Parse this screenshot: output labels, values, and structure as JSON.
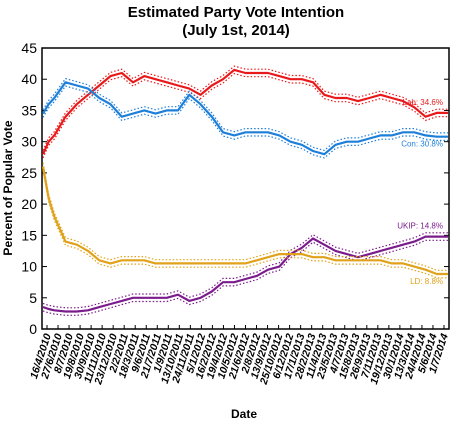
{
  "chart_data": {
    "type": "line",
    "title": "Estimated Party Vote Intention",
    "subtitle": "(July 1st, 2014)",
    "xlabel": "Date",
    "ylabel": "Percent of Popular Vote",
    "ylim": [
      0,
      45
    ],
    "yticks": [
      0,
      5,
      10,
      15,
      20,
      25,
      30,
      35,
      40,
      45
    ],
    "grid": false,
    "xticks": [
      "16/4/2010",
      "27/6/2010",
      "8/7/2010",
      "19/8/2010",
      "30/9/2010",
      "11/11/2010",
      "23/12/2010",
      "2/2/2011",
      "18/3/2011",
      "9/6/2011",
      "21/7/2011",
      "1/9/2011",
      "13/10/2011",
      "24/11/2011",
      "5/1/2012",
      "16/2/2012",
      "19/4/2012",
      "10/5/2012",
      "21/6/2012",
      "2/8/2012",
      "13/9/2012",
      "25/10/2012",
      "6/12/2012",
      "17/1/2013",
      "28/2/2013",
      "11/4/2013",
      "23/5/2013",
      "4/7/2013",
      "15/8/2013",
      "26/9/2013",
      "7/11/2013",
      "19/12/2013",
      "30/1/2014",
      "13/3/2014",
      "24/4/2014",
      "5/6/2014",
      "1/7/2014"
    ],
    "x": [
      0,
      0.5,
      1,
      2,
      3,
      4,
      5,
      6,
      7,
      8,
      9,
      10,
      11,
      12,
      13,
      14,
      15,
      16,
      17,
      18,
      19,
      20,
      21,
      22,
      23,
      24,
      25,
      26,
      27,
      28,
      29,
      30,
      31,
      32,
      33,
      34,
      35,
      36
    ],
    "series": [
      {
        "name": "Lab",
        "end_label": "Lab: 34.6%",
        "color": "#e8191b",
        "values": [
          28,
          30,
          31,
          34,
          36,
          37.5,
          39,
          40.5,
          41,
          39.5,
          40.5,
          40,
          39.5,
          39,
          38.5,
          37.5,
          39,
          40,
          41.5,
          41,
          41,
          41,
          40.5,
          40,
          40,
          39.5,
          37.5,
          37,
          37,
          36.5,
          37,
          37.5,
          37,
          36.5,
          35.5,
          34,
          34.6,
          34.6
        ]
      },
      {
        "name": "Con",
        "end_label": "Con: 30.8%",
        "color": "#1e7fd9",
        "values": [
          34.5,
          36,
          37,
          39.5,
          39,
          38.5,
          37,
          36,
          34,
          34.5,
          35,
          34.5,
          35,
          35,
          37.5,
          36,
          34,
          31.5,
          31,
          31.5,
          31.5,
          31.5,
          31,
          30,
          29.5,
          28.5,
          28,
          29.5,
          30,
          30,
          30.5,
          31,
          31,
          31.5,
          31.5,
          31,
          30.8,
          30.8
        ]
      },
      {
        "name": "UKIP",
        "end_label": "UKIP: 14.8%",
        "color": "#7b1c8c",
        "values": [
          3.5,
          3.2,
          3,
          2.8,
          2.8,
          3,
          3.5,
          4,
          4.5,
          5,
          5,
          5,
          5,
          5.5,
          4.5,
          5,
          6,
          7.5,
          7.5,
          8,
          8.5,
          9.5,
          10,
          12,
          13,
          14.5,
          13.5,
          12.5,
          12,
          11.5,
          12,
          12.5,
          13,
          13.5,
          14,
          14.8,
          14.8,
          14.8
        ]
      },
      {
        "name": "LD",
        "end_label": "LD: 8.8%",
        "color": "#e0a21a",
        "values": [
          26,
          21,
          18,
          14,
          13.5,
          12.5,
          11,
          10.5,
          11,
          11,
          11,
          10.5,
          10.5,
          10.5,
          10.5,
          10.5,
          10.5,
          10.5,
          10.5,
          10.5,
          11,
          11.5,
          12,
          12,
          12,
          11.5,
          11.5,
          11,
          11,
          11,
          11,
          11,
          10.5,
          10.5,
          10,
          9.5,
          8.8,
          8.8
        ]
      }
    ]
  }
}
